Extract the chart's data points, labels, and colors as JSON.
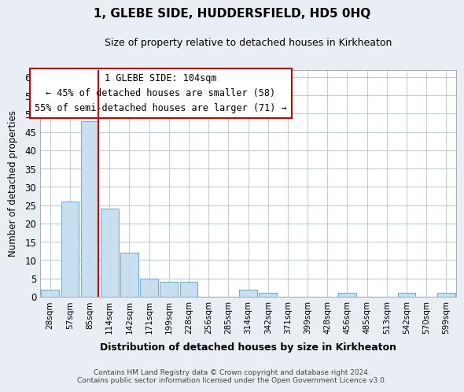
{
  "title": "1, GLEBE SIDE, HUDDERSFIELD, HD5 0HQ",
  "subtitle": "Size of property relative to detached houses in Kirkheaton",
  "xlabel": "Distribution of detached houses by size in Kirkheaton",
  "ylabel": "Number of detached properties",
  "bar_labels": [
    "28sqm",
    "57sqm",
    "85sqm",
    "114sqm",
    "142sqm",
    "171sqm",
    "199sqm",
    "228sqm",
    "256sqm",
    "285sqm",
    "314sqm",
    "342sqm",
    "371sqm",
    "399sqm",
    "428sqm",
    "456sqm",
    "485sqm",
    "513sqm",
    "542sqm",
    "570sqm",
    "599sqm"
  ],
  "bar_values": [
    2,
    26,
    48,
    24,
    12,
    5,
    4,
    4,
    0,
    0,
    2,
    1,
    0,
    0,
    0,
    1,
    0,
    0,
    1,
    0,
    1
  ],
  "bar_color": "#c8dff0",
  "bar_edge_color": "#7aaed0",
  "ylim": [
    0,
    62
  ],
  "yticks": [
    0,
    5,
    10,
    15,
    20,
    25,
    30,
    35,
    40,
    45,
    50,
    55,
    60
  ],
  "vline_color": "#cc0000",
  "annotation_title": "1 GLEBE SIDE: 104sqm",
  "annotation_line1": "← 45% of detached houses are smaller (58)",
  "annotation_line2": "55% of semi-detached houses are larger (71) →",
  "annotation_box_color": "#ffffff",
  "annotation_box_edge": "#cc0000",
  "footer_line1": "Contains HM Land Registry data © Crown copyright and database right 2024.",
  "footer_line2": "Contains public sector information licensed under the Open Government Licence v3.0.",
  "bg_color": "#e8eef4",
  "plot_bg_color": "#ffffff",
  "grid_color": "#c0cdd8"
}
